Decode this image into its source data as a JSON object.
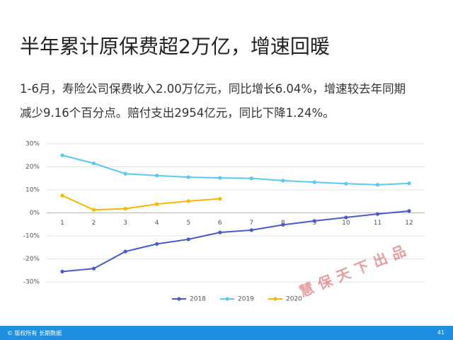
{
  "title": "半年累计原保费超2万亿，增速回暖",
  "paragraph_lines": [
    "1-6月，寿险公司保费收入2.00万亿元，同比增长6.04%，增速较去年同期",
    "减少9.16个百分点。赔付支出2954亿元，同比下降1.24%。"
  ],
  "watermark": "慧保天下出品",
  "footer": {
    "copyright": "© 版权所有 长期数据",
    "page": "41"
  },
  "chart_data": {
    "type": "line",
    "categories": [
      "1",
      "2",
      "3",
      "4",
      "5",
      "6",
      "7",
      "8",
      "9",
      "10",
      "11",
      "12"
    ],
    "series": [
      {
        "name": "2018",
        "color": "#4a5cc4",
        "values": [
          -25.5,
          -24.2,
          -16.8,
          -13.5,
          -11.5,
          -8.5,
          -7.5,
          -5.2,
          -3.5,
          -2,
          -0.5,
          0.8
        ]
      },
      {
        "name": "2019",
        "color": "#5ac8f0",
        "values": [
          25,
          21.5,
          17,
          16.2,
          15.5,
          15.2,
          15,
          14,
          13.3,
          12.7,
          12.2,
          12.8
        ]
      },
      {
        "name": "2020",
        "color": "#f5b800",
        "values": [
          7.5,
          1.3,
          1.8,
          3.8,
          5.1,
          6.1,
          null,
          null,
          null,
          null,
          null,
          null
        ]
      }
    ],
    "ylim": [
      -30,
      30
    ],
    "yticks": [
      {
        "value": -30,
        "label": "-30%"
      },
      {
        "value": -20,
        "label": "-20%"
      },
      {
        "value": -10,
        "label": "-10%"
      },
      {
        "value": 0,
        "label": "0%"
      },
      {
        "value": 10,
        "label": "10%"
      },
      {
        "value": 20,
        "label": "20%"
      },
      {
        "value": 30,
        "label": "30%"
      }
    ],
    "grid": true,
    "legend": "bottom"
  }
}
